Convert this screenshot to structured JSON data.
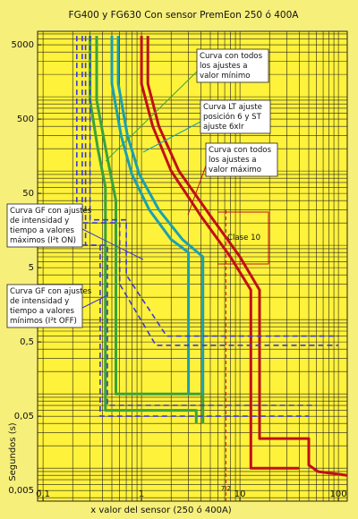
{
  "chart_data": {
    "type": "line",
    "title": "FG400 y FG630 Con sensor PremEon 250 ó 400A",
    "x_label": "x valor del sensor (250 ó 400A)",
    "y_label": "Segundos (s)",
    "log_x": true,
    "log_y": true,
    "grid": true,
    "xlim": [
      0.088,
      123
    ],
    "ylim": [
      0.0036,
      7600
    ],
    "xticks": [
      {
        "value": 0.1,
        "label": "0,1"
      },
      1,
      10,
      100
    ],
    "yticks": [
      {
        "value": 5000,
        "label": "5000"
      },
      500,
      50,
      5,
      {
        "value": 0.5,
        "label": "0,5"
      },
      {
        "value": 0.05,
        "label": "0,05"
      },
      {
        "value": 0.005,
        "label": "0,005"
      }
    ],
    "xgrid": [
      0.1,
      0.2,
      0.3,
      0.4,
      0.5,
      0.6,
      0.7,
      0.8,
      0.9,
      1,
      2,
      3,
      4,
      5,
      6,
      7,
      8,
      9,
      10,
      20,
      30,
      40,
      50,
      60,
      70,
      80,
      90,
      100
    ],
    "ygrid": [
      0.004,
      0.005,
      0.006,
      0.007,
      0.008,
      0.009,
      0.01,
      0.02,
      0.03,
      0.04,
      0.05,
      0.06,
      0.07,
      0.08,
      0.09,
      0.1,
      0.2,
      0.3,
      0.4,
      0.5,
      0.6,
      0.7,
      0.8,
      0.9,
      1,
      2,
      3,
      4,
      5,
      6,
      7,
      8,
      9,
      10,
      20,
      30,
      40,
      50,
      60,
      70,
      80,
      90,
      100,
      200,
      300,
      400,
      500,
      600,
      700,
      800,
      900,
      1000,
      2000,
      3000,
      4000,
      5000,
      6000,
      7000
    ],
    "marker_line": {
      "value": 7.2,
      "label": "7,2",
      "color": "#e01010"
    },
    "series": [
      {
        "color": "#3aa33a",
        "x": [
          0.3,
          0.3,
          0.36,
          0.43,
          0.43,
          3.6,
          3.6
        ],
        "y": [
          6600,
          900,
          200,
          60,
          0.06,
          0.06,
          0.04
        ]
      },
      {
        "color": "#3aa33a",
        "x": [
          0.35,
          0.35,
          0.45,
          0.55,
          0.55,
          4.2,
          4.2
        ],
        "y": [
          6600,
          900,
          150,
          40,
          0.1,
          0.1,
          0.04
        ]
      },
      {
        "color": "#1aa0b0",
        "x": [
          0.5,
          0.5,
          0.62,
          0.8,
          1.2,
          2,
          3,
          3
        ],
        "y": [
          6600,
          1500,
          300,
          90,
          30,
          12,
          8,
          0.1
        ]
      },
      {
        "color": "#1aa0b0",
        "x": [
          0.58,
          0.58,
          0.72,
          0.95,
          1.5,
          2.6,
          4.2,
          4.2
        ],
        "y": [
          6600,
          1500,
          300,
          90,
          30,
          12,
          7,
          0.1
        ]
      },
      {
        "color": "#c01018",
        "x": [
          1,
          1,
          1.3,
          2,
          4,
          8,
          12.9,
          12.9,
          40
        ],
        "y": [
          6600,
          1500,
          400,
          100,
          25,
          7,
          2.5,
          0.01,
          0.01
        ]
      },
      {
        "color": "#c01018",
        "x": [
          1.16,
          1.16,
          1.5,
          2.4,
          5,
          10,
          15.8,
          15.8,
          50,
          50,
          62,
          123
        ],
        "y": [
          6600,
          1500,
          400,
          100,
          25,
          7,
          2.5,
          0.025,
          0.025,
          0.011,
          0.009,
          0.008
        ]
      },
      {
        "color": "#3a3ad8",
        "dash": true,
        "x": [
          0.25,
          0.25,
          0.6,
          0.6,
          1.4,
          100
        ],
        "y": [
          6600,
          20,
          20,
          3,
          0.45,
          0.45
        ]
      },
      {
        "color": "#3a3ad8",
        "dash": true,
        "x": [
          0.3,
          0.3,
          0.7,
          0.7,
          1.8,
          100
        ],
        "y": [
          6600,
          22,
          22,
          4,
          0.6,
          0.6
        ]
      },
      {
        "color": "#3a3ad8",
        "dash": true,
        "x": [
          0.22,
          0.22,
          0.38,
          0.38,
          50
        ],
        "y": [
          6600,
          10,
          10,
          0.05,
          0.05
        ]
      },
      {
        "color": "#3a3ad8",
        "dash": true,
        "x": [
          0.27,
          0.27,
          0.45,
          0.45,
          60
        ],
        "y": [
          6600,
          10,
          10,
          0.07,
          0.07
        ]
      }
    ],
    "annotations": [
      {
        "lines": [
          "Curva con todos",
          "los ajustes a",
          "valor mínimo"
        ]
      },
      {
        "lines": [
          "Curva LT ajuste",
          "posición 6 y ST",
          "ajuste 6xIr"
        ]
      },
      {
        "lines": [
          "Curva con todos",
          "los ajustes a",
          "valor máximo"
        ]
      },
      {
        "lines": [
          "Curva GF con ajustes",
          "de intensidad y",
          "tiempo a valores",
          "máximos (I²t ON)"
        ]
      },
      {
        "lines": [
          "Curva GF con ajustes",
          "de intensidad y",
          "tiempo a valores",
          "mínimos (I²t OFF)"
        ]
      },
      {
        "lines": [
          "Clase 10"
        ]
      }
    ]
  }
}
